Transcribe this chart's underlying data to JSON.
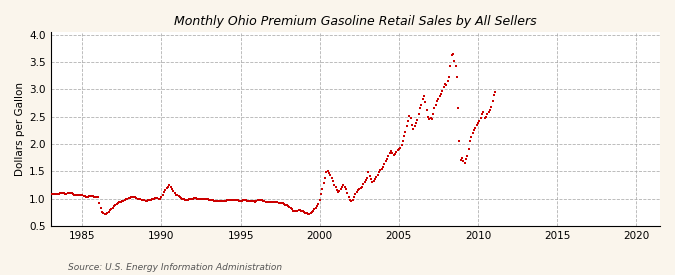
{
  "title": "Monthly Ohio Premium Gasoline Retail Sales by All Sellers",
  "ylabel": "Dollars per Gallon",
  "source": "Source: U.S. Energy Information Administration",
  "bg_color": "#FAF5EC",
  "marker_color": "#CC0000",
  "xlim": [
    1983.0,
    2021.5
  ],
  "ylim": [
    0.5,
    4.05
  ],
  "xticks": [
    1985,
    1990,
    1995,
    2000,
    2005,
    2010,
    2015,
    2020
  ],
  "yticks": [
    0.5,
    1.0,
    1.5,
    2.0,
    2.5,
    3.0,
    3.5,
    4.0
  ],
  "data": [
    [
      1983.08,
      1.09
    ],
    [
      1983.17,
      1.09
    ],
    [
      1983.25,
      1.09
    ],
    [
      1983.33,
      1.08
    ],
    [
      1983.42,
      1.08
    ],
    [
      1983.5,
      1.09
    ],
    [
      1983.58,
      1.1
    ],
    [
      1983.67,
      1.1
    ],
    [
      1983.75,
      1.1
    ],
    [
      1983.83,
      1.1
    ],
    [
      1983.92,
      1.09
    ],
    [
      1984.0,
      1.09
    ],
    [
      1984.08,
      1.1
    ],
    [
      1984.17,
      1.11
    ],
    [
      1984.25,
      1.1
    ],
    [
      1984.33,
      1.1
    ],
    [
      1984.42,
      1.09
    ],
    [
      1984.5,
      1.07
    ],
    [
      1984.58,
      1.06
    ],
    [
      1984.67,
      1.06
    ],
    [
      1984.75,
      1.06
    ],
    [
      1984.83,
      1.07
    ],
    [
      1984.92,
      1.07
    ],
    [
      1985.0,
      1.06
    ],
    [
      1985.08,
      1.05
    ],
    [
      1985.17,
      1.04
    ],
    [
      1985.25,
      1.03
    ],
    [
      1985.33,
      1.03
    ],
    [
      1985.42,
      1.04
    ],
    [
      1985.5,
      1.05
    ],
    [
      1985.58,
      1.05
    ],
    [
      1985.67,
      1.04
    ],
    [
      1985.75,
      1.03
    ],
    [
      1985.83,
      1.02
    ],
    [
      1985.92,
      1.02
    ],
    [
      1986.0,
      1.02
    ],
    [
      1986.08,
      0.92
    ],
    [
      1986.17,
      0.82
    ],
    [
      1986.25,
      0.76
    ],
    [
      1986.33,
      0.73
    ],
    [
      1986.42,
      0.72
    ],
    [
      1986.5,
      0.72
    ],
    [
      1986.58,
      0.74
    ],
    [
      1986.67,
      0.76
    ],
    [
      1986.75,
      0.79
    ],
    [
      1986.83,
      0.81
    ],
    [
      1986.92,
      0.83
    ],
    [
      1987.0,
      0.86
    ],
    [
      1987.08,
      0.88
    ],
    [
      1987.17,
      0.9
    ],
    [
      1987.25,
      0.92
    ],
    [
      1987.33,
      0.93
    ],
    [
      1987.42,
      0.94
    ],
    [
      1987.5,
      0.95
    ],
    [
      1987.58,
      0.96
    ],
    [
      1987.67,
      0.97
    ],
    [
      1987.75,
      0.99
    ],
    [
      1987.83,
      1.0
    ],
    [
      1987.92,
      1.01
    ],
    [
      1988.0,
      1.01
    ],
    [
      1988.08,
      1.02
    ],
    [
      1988.17,
      1.03
    ],
    [
      1988.25,
      1.03
    ],
    [
      1988.33,
      1.02
    ],
    [
      1988.42,
      1.01
    ],
    [
      1988.5,
      1.0
    ],
    [
      1988.58,
      0.99
    ],
    [
      1988.67,
      0.99
    ],
    [
      1988.75,
      0.98
    ],
    [
      1988.83,
      0.97
    ],
    [
      1988.92,
      0.97
    ],
    [
      1989.0,
      0.96
    ],
    [
      1989.08,
      0.96
    ],
    [
      1989.17,
      0.97
    ],
    [
      1989.25,
      0.97
    ],
    [
      1989.33,
      0.98
    ],
    [
      1989.42,
      0.99
    ],
    [
      1989.5,
      1.0
    ],
    [
      1989.58,
      1.01
    ],
    [
      1989.67,
      1.01
    ],
    [
      1989.75,
      1.01
    ],
    [
      1989.83,
      1.0
    ],
    [
      1989.92,
      1.0
    ],
    [
      1990.0,
      1.02
    ],
    [
      1990.08,
      1.07
    ],
    [
      1990.17,
      1.12
    ],
    [
      1990.25,
      1.16
    ],
    [
      1990.33,
      1.19
    ],
    [
      1990.42,
      1.21
    ],
    [
      1990.5,
      1.24
    ],
    [
      1990.58,
      1.22
    ],
    [
      1990.67,
      1.17
    ],
    [
      1990.75,
      1.13
    ],
    [
      1990.83,
      1.1
    ],
    [
      1990.92,
      1.07
    ],
    [
      1991.0,
      1.06
    ],
    [
      1991.08,
      1.04
    ],
    [
      1991.17,
      1.02
    ],
    [
      1991.25,
      1.01
    ],
    [
      1991.33,
      1.0
    ],
    [
      1991.42,
      0.99
    ],
    [
      1991.5,
      0.98
    ],
    [
      1991.58,
      0.98
    ],
    [
      1991.67,
      0.98
    ],
    [
      1991.75,
      0.99
    ],
    [
      1991.83,
      1.0
    ],
    [
      1991.92,
      1.0
    ],
    [
      1992.0,
      1.0
    ],
    [
      1992.08,
      1.01
    ],
    [
      1992.17,
      1.01
    ],
    [
      1992.25,
      1.0
    ],
    [
      1992.33,
      0.99
    ],
    [
      1992.42,
      0.99
    ],
    [
      1992.5,
      0.99
    ],
    [
      1992.58,
      0.99
    ],
    [
      1992.67,
      1.0
    ],
    [
      1992.75,
      1.0
    ],
    [
      1992.83,
      1.0
    ],
    [
      1992.92,
      0.99
    ],
    [
      1993.0,
      0.98
    ],
    [
      1993.08,
      0.97
    ],
    [
      1993.17,
      0.97
    ],
    [
      1993.25,
      0.97
    ],
    [
      1993.33,
      0.96
    ],
    [
      1993.42,
      0.96
    ],
    [
      1993.5,
      0.96
    ],
    [
      1993.58,
      0.96
    ],
    [
      1993.67,
      0.95
    ],
    [
      1993.75,
      0.95
    ],
    [
      1993.83,
      0.95
    ],
    [
      1993.92,
      0.95
    ],
    [
      1994.0,
      0.95
    ],
    [
      1994.08,
      0.96
    ],
    [
      1994.17,
      0.97
    ],
    [
      1994.25,
      0.97
    ],
    [
      1994.33,
      0.97
    ],
    [
      1994.42,
      0.97
    ],
    [
      1994.5,
      0.97
    ],
    [
      1994.58,
      0.98
    ],
    [
      1994.67,
      0.98
    ],
    [
      1994.75,
      0.97
    ],
    [
      1994.83,
      0.97
    ],
    [
      1994.92,
      0.96
    ],
    [
      1995.0,
      0.96
    ],
    [
      1995.08,
      0.96
    ],
    [
      1995.17,
      0.97
    ],
    [
      1995.25,
      0.97
    ],
    [
      1995.33,
      0.97
    ],
    [
      1995.42,
      0.96
    ],
    [
      1995.5,
      0.95
    ],
    [
      1995.58,
      0.95
    ],
    [
      1995.67,
      0.95
    ],
    [
      1995.75,
      0.95
    ],
    [
      1995.83,
      0.95
    ],
    [
      1995.92,
      0.94
    ],
    [
      1996.0,
      0.95
    ],
    [
      1996.08,
      0.97
    ],
    [
      1996.17,
      0.98
    ],
    [
      1996.25,
      0.98
    ],
    [
      1996.33,
      0.97
    ],
    [
      1996.42,
      0.96
    ],
    [
      1996.5,
      0.95
    ],
    [
      1996.58,
      0.94
    ],
    [
      1996.67,
      0.94
    ],
    [
      1996.75,
      0.94
    ],
    [
      1996.83,
      0.93
    ],
    [
      1996.92,
      0.93
    ],
    [
      1997.0,
      0.93
    ],
    [
      1997.08,
      0.93
    ],
    [
      1997.17,
      0.94
    ],
    [
      1997.25,
      0.94
    ],
    [
      1997.33,
      0.93
    ],
    [
      1997.42,
      0.92
    ],
    [
      1997.5,
      0.92
    ],
    [
      1997.58,
      0.92
    ],
    [
      1997.67,
      0.91
    ],
    [
      1997.75,
      0.9
    ],
    [
      1997.83,
      0.89
    ],
    [
      1997.92,
      0.88
    ],
    [
      1998.0,
      0.87
    ],
    [
      1998.08,
      0.85
    ],
    [
      1998.17,
      0.83
    ],
    [
      1998.25,
      0.8
    ],
    [
      1998.33,
      0.78
    ],
    [
      1998.42,
      0.77
    ],
    [
      1998.5,
      0.77
    ],
    [
      1998.58,
      0.78
    ],
    [
      1998.67,
      0.79
    ],
    [
      1998.75,
      0.79
    ],
    [
      1998.83,
      0.78
    ],
    [
      1998.92,
      0.77
    ],
    [
      1999.0,
      0.76
    ],
    [
      1999.08,
      0.74
    ],
    [
      1999.17,
      0.73
    ],
    [
      1999.25,
      0.72
    ],
    [
      1999.33,
      0.72
    ],
    [
      1999.42,
      0.73
    ],
    [
      1999.5,
      0.75
    ],
    [
      1999.58,
      0.78
    ],
    [
      1999.67,
      0.8
    ],
    [
      1999.75,
      0.83
    ],
    [
      1999.83,
      0.87
    ],
    [
      1999.92,
      0.9
    ],
    [
      2000.0,
      0.97
    ],
    [
      2000.08,
      1.08
    ],
    [
      2000.17,
      1.18
    ],
    [
      2000.25,
      1.28
    ],
    [
      2000.33,
      1.38
    ],
    [
      2000.42,
      1.48
    ],
    [
      2000.5,
      1.5
    ],
    [
      2000.58,
      1.47
    ],
    [
      2000.67,
      1.44
    ],
    [
      2000.75,
      1.38
    ],
    [
      2000.83,
      1.32
    ],
    [
      2000.92,
      1.25
    ],
    [
      2001.0,
      1.22
    ],
    [
      2001.08,
      1.15
    ],
    [
      2001.17,
      1.12
    ],
    [
      2001.25,
      1.13
    ],
    [
      2001.33,
      1.17
    ],
    [
      2001.42,
      1.22
    ],
    [
      2001.5,
      1.25
    ],
    [
      2001.58,
      1.22
    ],
    [
      2001.67,
      1.18
    ],
    [
      2001.75,
      1.1
    ],
    [
      2001.83,
      1.03
    ],
    [
      2001.92,
      0.97
    ],
    [
      2002.0,
      0.96
    ],
    [
      2002.08,
      0.97
    ],
    [
      2002.17,
      1.02
    ],
    [
      2002.25,
      1.08
    ],
    [
      2002.33,
      1.12
    ],
    [
      2002.42,
      1.15
    ],
    [
      2002.5,
      1.18
    ],
    [
      2002.58,
      1.2
    ],
    [
      2002.67,
      1.22
    ],
    [
      2002.75,
      1.26
    ],
    [
      2002.83,
      1.3
    ],
    [
      2002.92,
      1.34
    ],
    [
      2003.0,
      1.38
    ],
    [
      2003.08,
      1.48
    ],
    [
      2003.17,
      1.42
    ],
    [
      2003.25,
      1.35
    ],
    [
      2003.33,
      1.3
    ],
    [
      2003.42,
      1.32
    ],
    [
      2003.5,
      1.36
    ],
    [
      2003.58,
      1.4
    ],
    [
      2003.67,
      1.44
    ],
    [
      2003.75,
      1.48
    ],
    [
      2003.83,
      1.52
    ],
    [
      2003.92,
      1.55
    ],
    [
      2004.0,
      1.58
    ],
    [
      2004.08,
      1.63
    ],
    [
      2004.17,
      1.68
    ],
    [
      2004.25,
      1.73
    ],
    [
      2004.33,
      1.78
    ],
    [
      2004.42,
      1.83
    ],
    [
      2004.5,
      1.87
    ],
    [
      2004.58,
      1.84
    ],
    [
      2004.67,
      1.8
    ],
    [
      2004.75,
      1.82
    ],
    [
      2004.83,
      1.85
    ],
    [
      2004.92,
      1.88
    ],
    [
      2005.0,
      1.9
    ],
    [
      2005.08,
      1.93
    ],
    [
      2005.17,
      1.98
    ],
    [
      2005.25,
      2.05
    ],
    [
      2005.33,
      2.15
    ],
    [
      2005.42,
      2.22
    ],
    [
      2005.5,
      2.32
    ],
    [
      2005.58,
      2.42
    ],
    [
      2005.67,
      2.52
    ],
    [
      2005.75,
      2.47
    ],
    [
      2005.83,
      2.35
    ],
    [
      2005.92,
      2.28
    ],
    [
      2006.0,
      2.32
    ],
    [
      2006.08,
      2.38
    ],
    [
      2006.17,
      2.44
    ],
    [
      2006.25,
      2.55
    ],
    [
      2006.33,
      2.65
    ],
    [
      2006.42,
      2.72
    ],
    [
      2006.5,
      2.82
    ],
    [
      2006.58,
      2.87
    ],
    [
      2006.67,
      2.77
    ],
    [
      2006.75,
      2.62
    ],
    [
      2006.83,
      2.5
    ],
    [
      2006.92,
      2.45
    ],
    [
      2007.0,
      2.48
    ],
    [
      2007.08,
      2.45
    ],
    [
      2007.17,
      2.55
    ],
    [
      2007.25,
      2.65
    ],
    [
      2007.33,
      2.72
    ],
    [
      2007.42,
      2.78
    ],
    [
      2007.5,
      2.83
    ],
    [
      2007.58,
      2.88
    ],
    [
      2007.67,
      2.92
    ],
    [
      2007.75,
      2.97
    ],
    [
      2007.83,
      3.05
    ],
    [
      2007.92,
      3.1
    ],
    [
      2008.0,
      3.08
    ],
    [
      2008.08,
      3.15
    ],
    [
      2008.17,
      3.22
    ],
    [
      2008.25,
      3.42
    ],
    [
      2008.33,
      3.62
    ],
    [
      2008.42,
      3.65
    ],
    [
      2008.5,
      3.52
    ],
    [
      2008.58,
      3.42
    ],
    [
      2008.67,
      3.22
    ],
    [
      2008.75,
      2.65
    ],
    [
      2008.83,
      2.05
    ],
    [
      2008.92,
      1.7
    ],
    [
      2009.0,
      1.75
    ],
    [
      2009.08,
      1.68
    ],
    [
      2009.17,
      1.65
    ],
    [
      2009.25,
      1.72
    ],
    [
      2009.33,
      1.78
    ],
    [
      2009.42,
      1.9
    ],
    [
      2009.5,
      2.05
    ],
    [
      2009.58,
      2.12
    ],
    [
      2009.67,
      2.2
    ],
    [
      2009.75,
      2.26
    ],
    [
      2009.83,
      2.3
    ],
    [
      2009.92,
      2.35
    ],
    [
      2010.0,
      2.38
    ],
    [
      2010.08,
      2.42
    ],
    [
      2010.17,
      2.48
    ],
    [
      2010.25,
      2.54
    ],
    [
      2010.33,
      2.58
    ],
    [
      2010.42,
      2.48
    ],
    [
      2010.5,
      2.5
    ],
    [
      2010.58,
      2.55
    ],
    [
      2010.67,
      2.58
    ],
    [
      2010.75,
      2.62
    ],
    [
      2010.83,
      2.68
    ],
    [
      2010.92,
      2.78
    ],
    [
      2011.0,
      2.9
    ],
    [
      2011.08,
      2.95
    ]
  ]
}
